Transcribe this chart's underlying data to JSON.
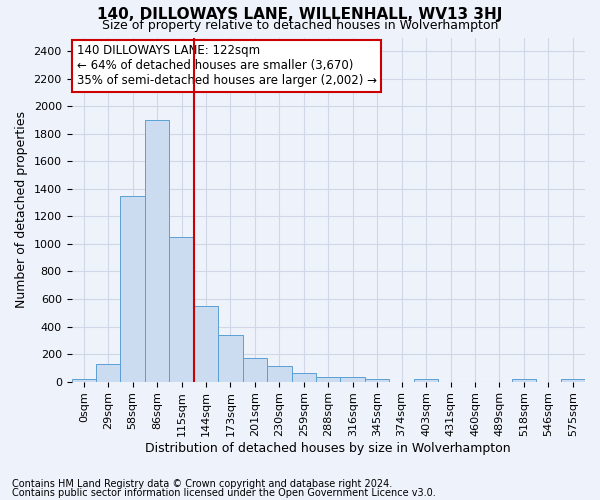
{
  "title": "140, DILLOWAYS LANE, WILLENHALL, WV13 3HJ",
  "subtitle": "Size of property relative to detached houses in Wolverhampton",
  "xlabel": "Distribution of detached houses by size in Wolverhampton",
  "ylabel": "Number of detached properties",
  "footer_line1": "Contains HM Land Registry data © Crown copyright and database right 2024.",
  "footer_line2": "Contains public sector information licensed under the Open Government Licence v3.0.",
  "annotation_title": "140 DILLOWAYS LANE: 122sqm",
  "annotation_line1": "← 64% of detached houses are smaller (3,670)",
  "annotation_line2": "35% of semi-detached houses are larger (2,002) →",
  "bar_color": "#ccdcf0",
  "bar_edge_color": "#5a9fd4",
  "categories": [
    "0sqm",
    "29sqm",
    "58sqm",
    "86sqm",
    "115sqm",
    "144sqm",
    "173sqm",
    "201sqm",
    "230sqm",
    "259sqm",
    "288sqm",
    "316sqm",
    "345sqm",
    "374sqm",
    "403sqm",
    "431sqm",
    "460sqm",
    "489sqm",
    "518sqm",
    "546sqm",
    "575sqm"
  ],
  "values": [
    18,
    130,
    1350,
    1900,
    1050,
    550,
    340,
    175,
    115,
    60,
    35,
    30,
    22,
    0,
    22,
    0,
    0,
    0,
    22,
    0,
    20
  ],
  "red_line_index": 4,
  "ylim": [
    0,
    2500
  ],
  "yticks": [
    0,
    200,
    400,
    600,
    800,
    1000,
    1200,
    1400,
    1600,
    1800,
    2000,
    2200,
    2400
  ],
  "background_color": "#eef2fa",
  "grid_color": "#d0d8e8",
  "annotation_box_color": "#ffffff",
  "annotation_box_edge": "#cc0000",
  "red_line_color": "#cc0000",
  "title_fontsize": 11,
  "subtitle_fontsize": 9,
  "ylabel_fontsize": 9,
  "xlabel_fontsize": 9,
  "tick_fontsize": 8,
  "annotation_fontsize": 8.5,
  "footer_fontsize": 7
}
